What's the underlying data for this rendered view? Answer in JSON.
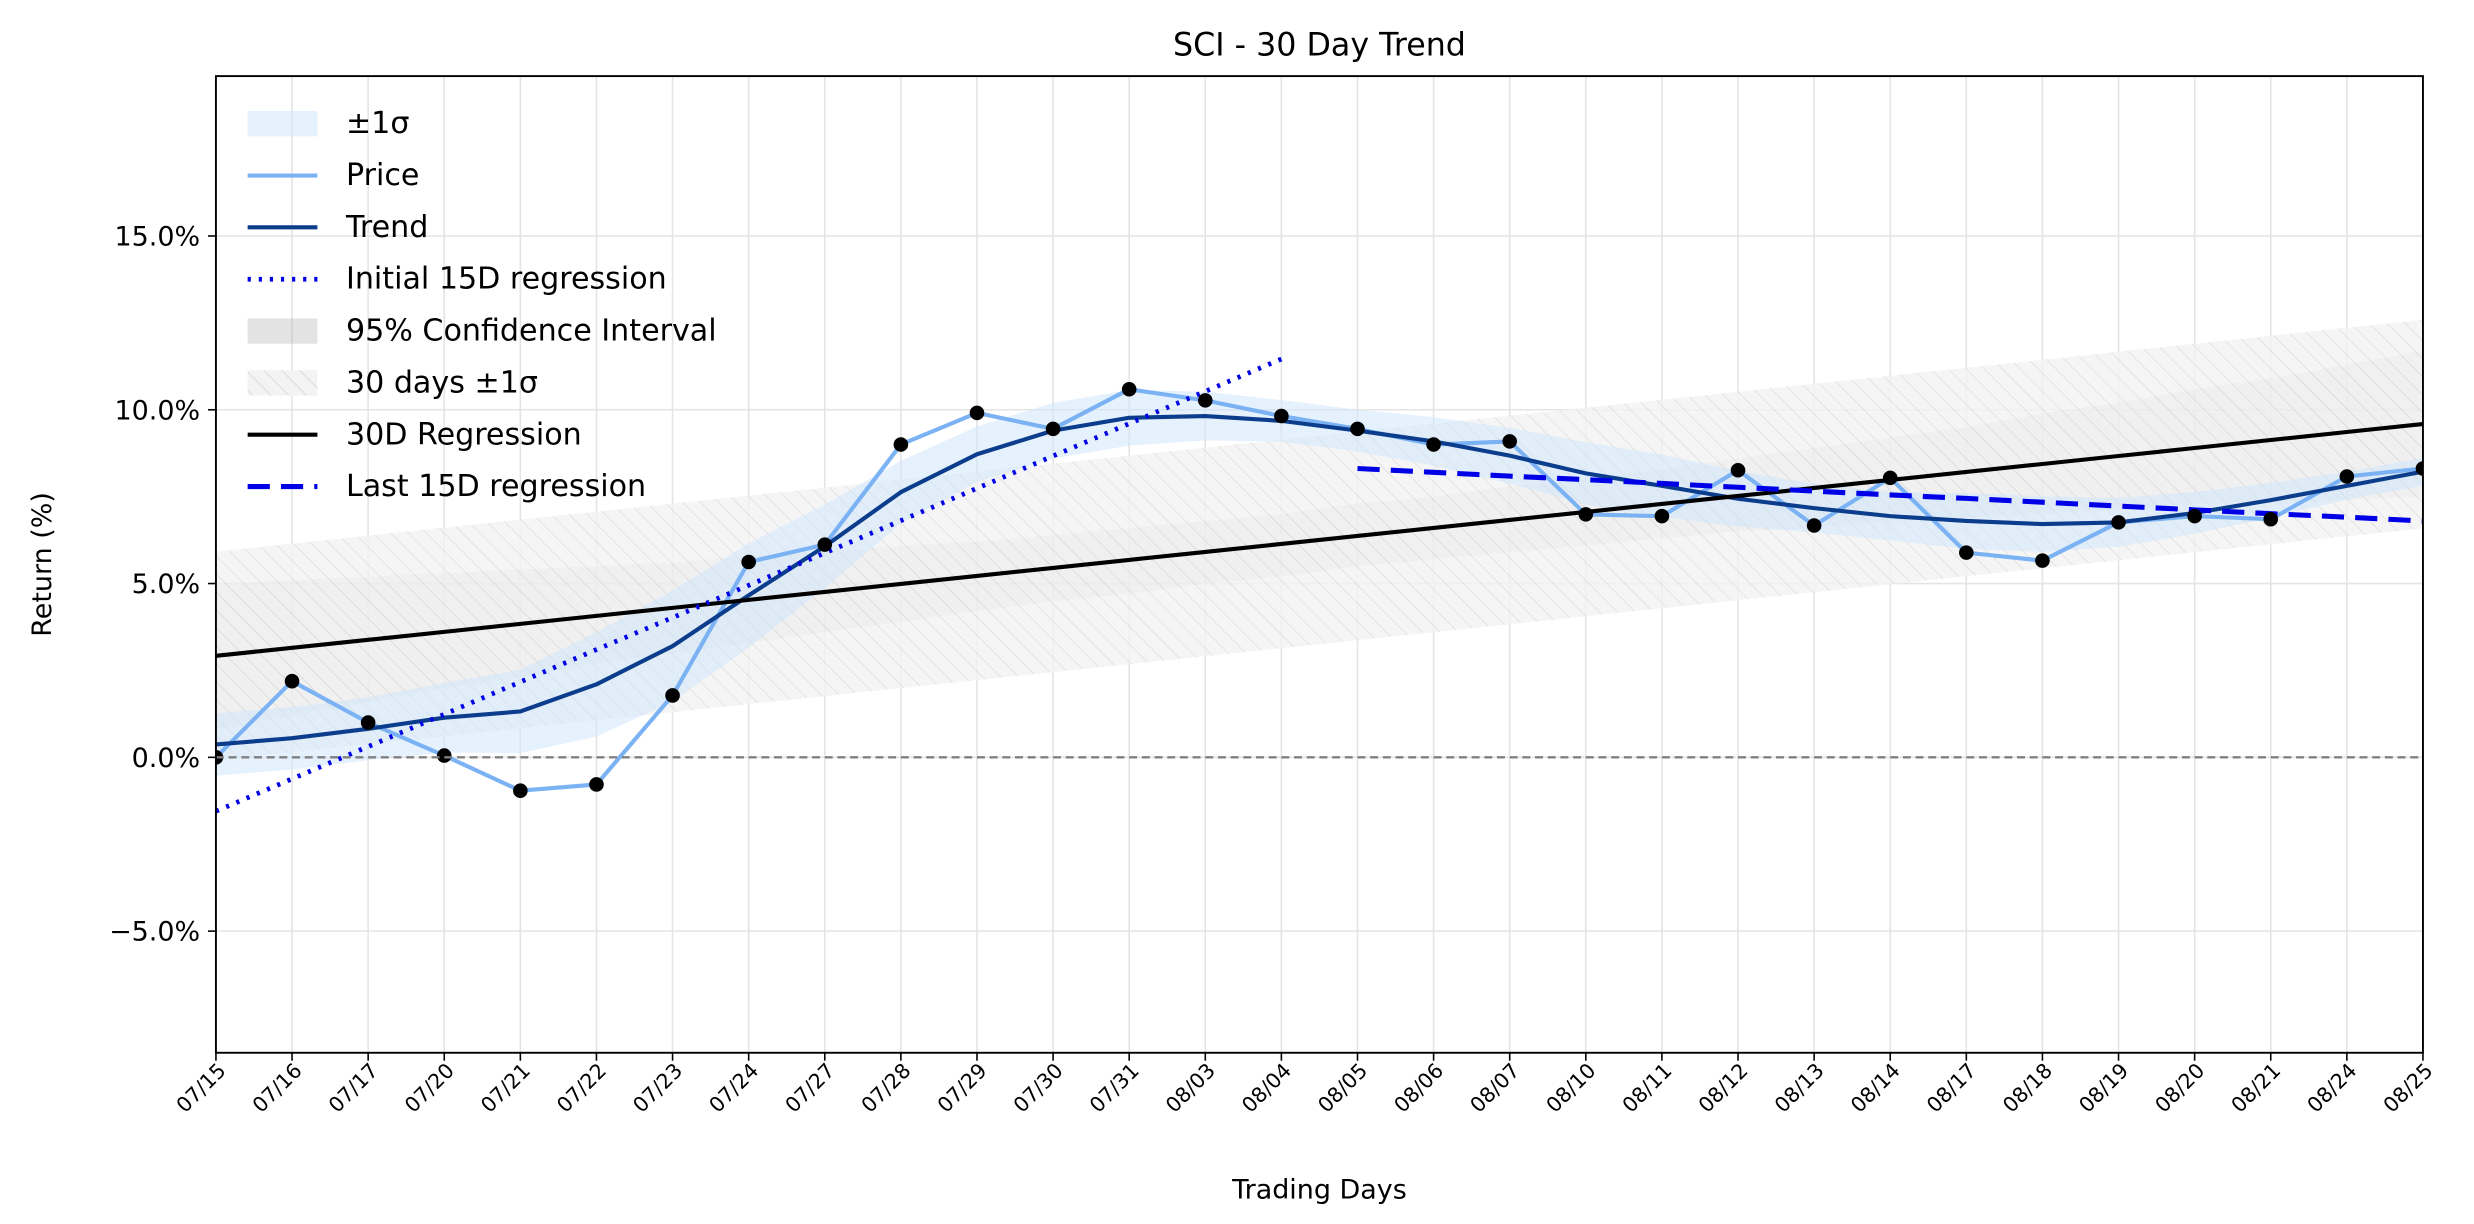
{
  "chart_data": {
    "type": "line",
    "title": "SCI - 30 Day Trend",
    "x_label": "Trading Days",
    "y_label": "Return (%)",
    "categories": [
      "07/15",
      "07/16",
      "07/17",
      "07/20",
      "07/21",
      "07/22",
      "07/23",
      "07/24",
      "07/27",
      "07/28",
      "07/29",
      "07/30",
      "07/31",
      "08/03",
      "08/04",
      "08/05",
      "08/06",
      "08/07",
      "08/10",
      "08/11",
      "08/12",
      "08/13",
      "08/14",
      "08/17",
      "08/18",
      "08/19",
      "08/20",
      "08/21",
      "08/24",
      "08/25"
    ],
    "ylim": [
      -8.5,
      19.6
    ],
    "yticks": [
      {
        "value": -5,
        "label": "−5.0%"
      },
      {
        "value": 0,
        "label": "0.0%"
      },
      {
        "value": 5,
        "label": "5.0%"
      },
      {
        "value": 10,
        "label": "10.0%"
      },
      {
        "value": 15,
        "label": "15.0%"
      }
    ],
    "grid": true,
    "reference_line": 0,
    "legend": "upper left",
    "series": [
      {
        "name": "±1σ",
        "style": "band",
        "color": "#cfe6fb",
        "around": 2,
        "std": [
          0.9,
          0.9,
          0.9,
          1.0,
          1.2,
          1.5,
          1.6,
          1.5,
          1.2,
          0.9,
          0.8,
          0.8,
          0.8,
          0.7,
          0.6,
          0.6,
          0.7,
          0.8,
          0.9,
          0.9,
          0.8,
          0.7,
          0.7,
          0.8,
          0.8,
          0.7,
          0.6,
          0.5,
          0.4,
          0.4
        ]
      },
      {
        "name": "Price",
        "style": "line",
        "color": "#7ab2f4",
        "markers": "#000000",
        "values": [
          0,
          2.19,
          1.0,
          0.05,
          -0.96,
          -0.78,
          1.78,
          5.62,
          6.12,
          9.0,
          9.91,
          9.45,
          10.59,
          10.27,
          9.82,
          9.45,
          9.0,
          9.09,
          6.99,
          6.94,
          8.26,
          6.67,
          8.04,
          5.89,
          5.66,
          6.76,
          6.94,
          6.85,
          8.08,
          8.31
        ]
      },
      {
        "name": "Trend",
        "style": "line",
        "color": "#0b3d8c",
        "values": [
          0.37,
          0.55,
          0.82,
          1.14,
          1.32,
          2.1,
          3.2,
          4.66,
          6.07,
          7.63,
          8.72,
          9.4,
          9.77,
          9.82,
          9.68,
          9.4,
          9.09,
          8.68,
          8.17,
          7.81,
          7.44,
          7.17,
          6.94,
          6.8,
          6.71,
          6.76,
          7.03,
          7.4,
          7.81,
          8.22
        ]
      },
      {
        "name": "Initial 15D regression",
        "style": "dotted",
        "color": "#0000e6",
        "values": [
          -1.55,
          -0.62,
          0.31,
          1.24,
          2.17,
          3.1,
          4.02,
          4.95,
          5.88,
          6.81,
          7.74,
          8.67,
          9.6,
          10.53,
          11.46,
          null,
          null,
          null,
          null,
          null,
          null,
          null,
          null,
          null,
          null,
          null,
          null,
          null,
          null,
          null
        ]
      },
      {
        "name": "95% Confidence Interval",
        "style": "range",
        "color": "#b0b0b0",
        "upper": [
          5.0,
          5.1,
          5.2,
          5.3,
          5.4,
          5.5,
          5.6,
          5.8,
          5.9,
          6.1,
          6.2,
          6.4,
          6.6,
          6.8,
          7.0,
          7.3,
          7.5,
          7.8,
          8.0,
          8.3,
          8.6,
          8.9,
          9.2,
          9.5,
          9.9,
          10.2,
          10.6,
          10.9,
          11.3,
          11.7
        ],
        "lower": [
          0.8,
          1.2,
          1.6,
          2.0,
          2.3,
          2.7,
          3.0,
          3.3,
          3.6,
          3.9,
          4.2,
          4.5,
          4.7,
          5.0,
          5.2,
          5.5,
          5.7,
          5.9,
          6.1,
          6.3,
          6.5,
          6.6,
          6.8,
          6.9,
          7.0,
          7.1,
          7.3,
          7.3,
          7.4,
          7.5
        ]
      },
      {
        "name": "30 days ±1σ",
        "style": "hatch",
        "color": "#d0d0d0",
        "around": 6,
        "std": 3.0
      },
      {
        "name": "30D Regression",
        "style": "line",
        "color": "#000000",
        "values": [
          2.92,
          3.15,
          3.38,
          3.61,
          3.84,
          4.07,
          4.3,
          4.53,
          4.76,
          4.99,
          5.22,
          5.45,
          5.68,
          5.91,
          6.14,
          6.37,
          6.6,
          6.83,
          7.06,
          7.29,
          7.52,
          7.75,
          7.98,
          8.21,
          8.44,
          8.67,
          8.9,
          9.13,
          9.36,
          9.59
        ]
      },
      {
        "name": "Last 15D regression",
        "style": "dashed",
        "color": "#0000e6",
        "values": [
          null,
          null,
          null,
          null,
          null,
          null,
          null,
          null,
          null,
          null,
          null,
          null,
          null,
          null,
          null,
          8.31,
          8.2,
          8.09,
          7.99,
          7.88,
          7.77,
          7.66,
          7.55,
          7.45,
          7.34,
          7.23,
          7.12,
          7.01,
          6.91,
          6.8
        ]
      }
    ]
  }
}
